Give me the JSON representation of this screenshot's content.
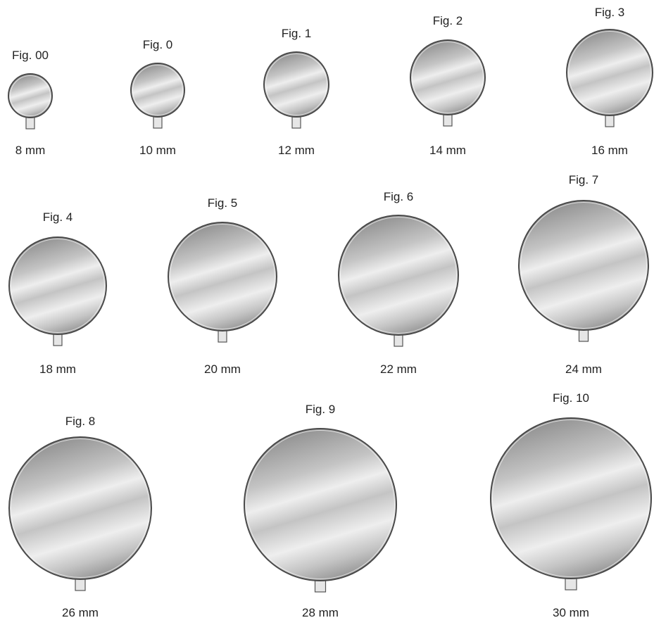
{
  "colors": {
    "rim": "#4a4a4a",
    "face_light": "#eeeeee",
    "face_mid": "#c4c4c4",
    "face_dark": "#8f8f8f",
    "stem_fill": "#e6e6e6",
    "stem_stroke": "#555555"
  },
  "mirrors": [
    {
      "fig": "Fig. 00",
      "size": "8 mm",
      "diameter_mm": 8
    },
    {
      "fig": "Fig. 0",
      "size": "10 mm",
      "diameter_mm": 10
    },
    {
      "fig": "Fig. 1",
      "size": "12 mm",
      "diameter_mm": 12
    },
    {
      "fig": "Fig. 2",
      "size": "14 mm",
      "diameter_mm": 14
    },
    {
      "fig": "Fig. 3",
      "size": "16 mm",
      "diameter_mm": 16
    },
    {
      "fig": "Fig. 4",
      "size": "18 mm",
      "diameter_mm": 18
    },
    {
      "fig": "Fig. 5",
      "size": "20 mm",
      "diameter_mm": 20
    },
    {
      "fig": "Fig. 6",
      "size": "22 mm",
      "diameter_mm": 22
    },
    {
      "fig": "Fig. 7",
      "size": "24 mm",
      "diameter_mm": 24
    },
    {
      "fig": "Fig. 8",
      "size": "26 mm",
      "diameter_mm": 26
    },
    {
      "fig": "Fig. 9",
      "size": "28 mm",
      "diameter_mm": 28
    },
    {
      "fig": "Fig. 10",
      "size": "30 mm",
      "diameter_mm": 30
    }
  ]
}
